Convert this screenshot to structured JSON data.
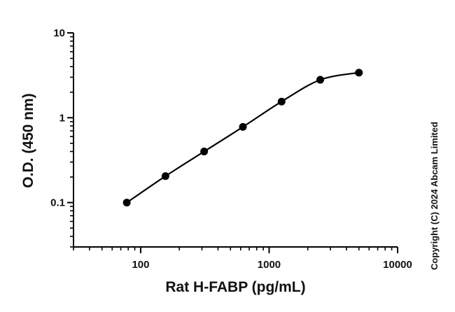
{
  "chart_data": {
    "type": "scatter",
    "title": "",
    "xlabel": "Rat H-FABP (pg/mL)",
    "ylabel": "O.D. (450 nm)",
    "xscale": "log",
    "yscale": "log",
    "xlim": [
      30,
      10000
    ],
    "ylim": [
      0.03,
      10
    ],
    "x_ticks": [
      {
        "value": 100,
        "label": "100"
      },
      {
        "value": 1000,
        "label": "1000"
      },
      {
        "value": 10000,
        "label": "10000"
      }
    ],
    "y_ticks": [
      {
        "value": 0.1,
        "label": "0.1"
      },
      {
        "value": 1,
        "label": "1"
      },
      {
        "value": 10,
        "label": "10"
      }
    ],
    "grid": false,
    "legend": "none",
    "series": [
      {
        "x": [
          78,
          156,
          312,
          625,
          1250,
          2500,
          5000
        ],
        "y": [
          0.1,
          0.205,
          0.4,
          0.78,
          1.55,
          2.8,
          3.4
        ],
        "fit": "four-parameter logistic curve",
        "color": "#000000"
      }
    ],
    "annotations": {
      "copyright": "Copyright (C) 2024 Abcam Limited"
    }
  }
}
